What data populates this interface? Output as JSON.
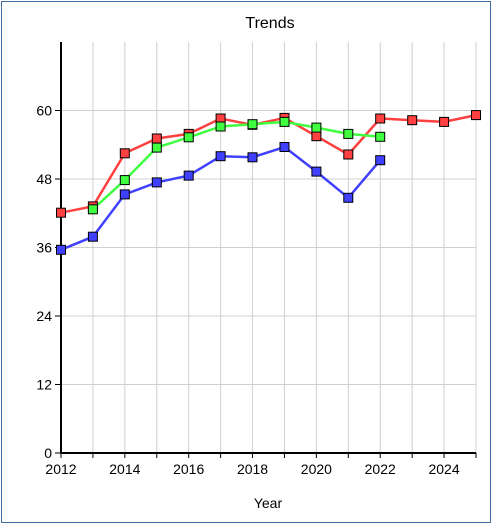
{
  "chart_data": {
    "type": "line",
    "title": "Trends",
    "xlabel": "Year",
    "ylabel": "",
    "xlim": [
      2012,
      2025
    ],
    "ylim": [
      0,
      72
    ],
    "x_ticks": [
      2012,
      2014,
      2016,
      2018,
      2020,
      2022,
      2024
    ],
    "y_ticks": [
      0,
      12,
      24,
      36,
      48,
      60
    ],
    "grid": true,
    "legend": "none",
    "series": [
      {
        "color": "#ff4040",
        "points": [
          [
            2012,
            42.1
          ],
          [
            2013,
            43.2
          ],
          [
            2014,
            52.5
          ],
          [
            2015,
            55.1
          ],
          [
            2016,
            55.9
          ],
          [
            2017,
            58.6
          ],
          [
            2018,
            57.5
          ],
          [
            2019,
            58.7
          ],
          [
            2020,
            55.5
          ],
          [
            2021,
            52.3
          ],
          [
            2022,
            58.6
          ],
          [
            2023,
            58.3
          ],
          [
            2024,
            58.0
          ],
          [
            2025,
            59.2
          ]
        ]
      },
      {
        "color": "#40ff40",
        "points": [
          [
            2013,
            42.7
          ],
          [
            2014,
            47.8
          ],
          [
            2015,
            53.5
          ],
          [
            2016,
            55.3
          ],
          [
            2017,
            57.2
          ],
          [
            2018,
            57.6
          ],
          [
            2019,
            58.0
          ],
          [
            2020,
            57.0
          ],
          [
            2021,
            55.9
          ],
          [
            2022,
            55.4
          ]
        ]
      },
      {
        "color": "#4040ff",
        "points": [
          [
            2012,
            35.6
          ],
          [
            2013,
            37.9
          ],
          [
            2014,
            45.3
          ],
          [
            2015,
            47.4
          ],
          [
            2016,
            48.6
          ],
          [
            2017,
            52.0
          ],
          [
            2018,
            51.8
          ],
          [
            2019,
            53.6
          ],
          [
            2020,
            49.3
          ],
          [
            2021,
            44.7
          ],
          [
            2022,
            51.3
          ]
        ]
      }
    ]
  }
}
